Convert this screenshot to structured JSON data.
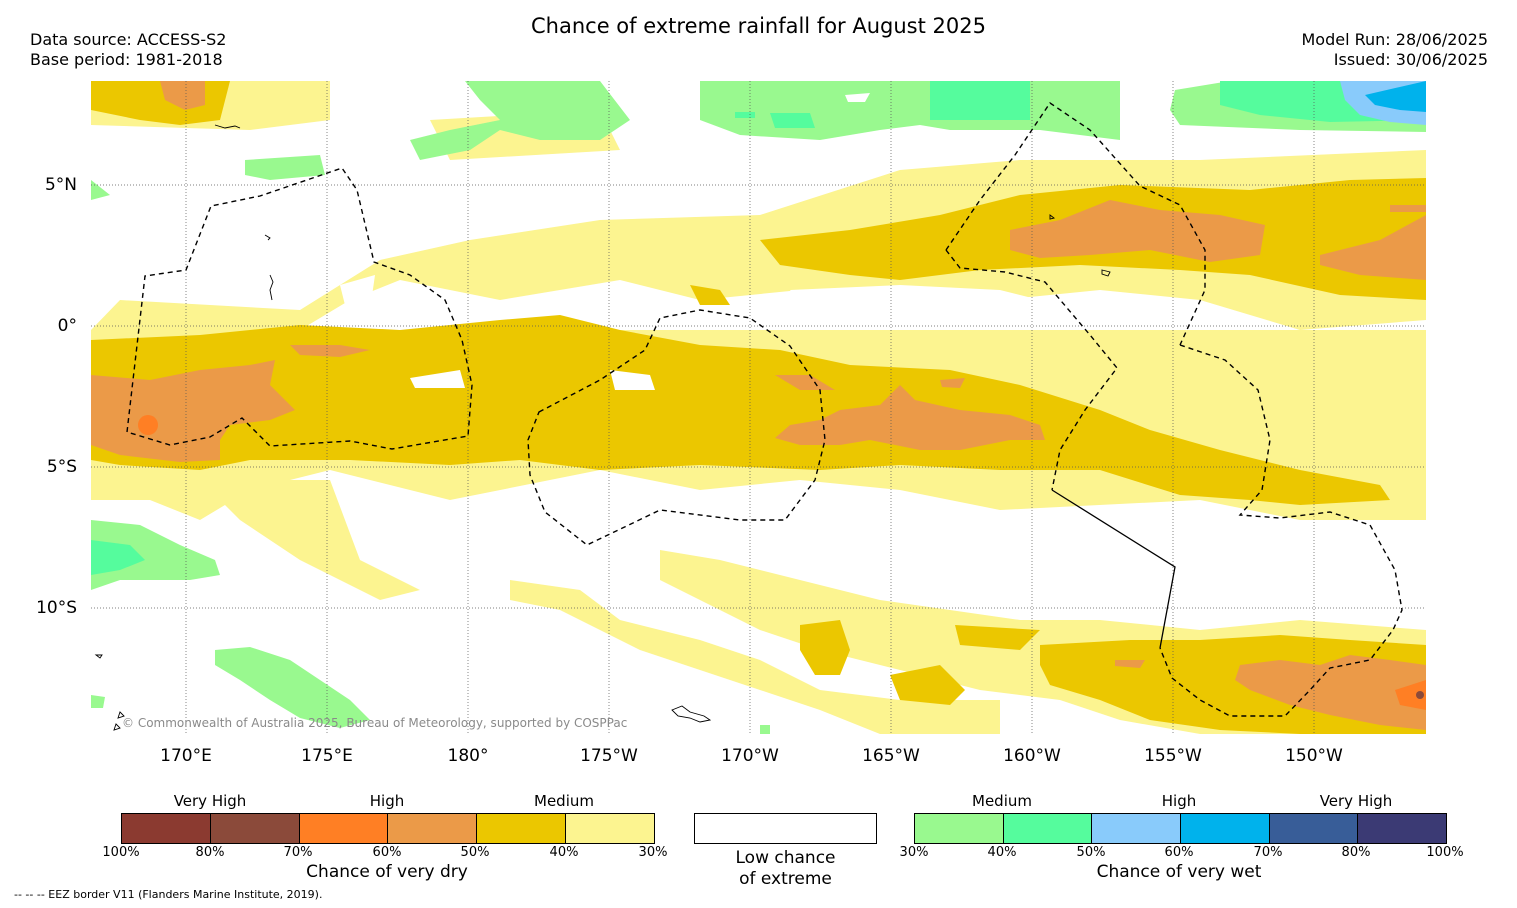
{
  "title": "Chance of extreme rainfall for August 2025",
  "data_source": "Data source: ACCESS-S2",
  "base_period": "Base period: 1981-2018",
  "model_run": "Model Run: 28/06/2025",
  "issued": "Issued: 30/06/2025",
  "lat_labels": [
    "5°N",
    "0°",
    "5°S",
    "10°S"
  ],
  "lon_labels": [
    "170°E",
    "175°E",
    "180°",
    "175°W",
    "170°W",
    "165°W",
    "160°W",
    "155°W",
    "150°W"
  ],
  "copyright": "© Commonwealth of Australia 2025, Bureau of Meteorology, supported by COSPPac",
  "dry_legend": {
    "group_labels": [
      "Very High",
      "High",
      "Medium"
    ],
    "ticks": [
      "100%",
      "80%",
      "70%",
      "60%",
      "50%",
      "40%",
      "30%"
    ],
    "colors": [
      "#8b3a30",
      "#8b4a3a",
      "#ff7f24",
      "#eb9a48",
      "#ebc700",
      "#fcf490"
    ],
    "title": "Chance of very dry"
  },
  "low_legend": {
    "line1": "Low chance",
    "line2": "of extreme",
    "color": "#ffffff"
  },
  "wet_legend": {
    "group_labels": [
      "Medium",
      "High",
      "Very High"
    ],
    "ticks": [
      "30%",
      "40%",
      "50%",
      "60%",
      "70%",
      "80%",
      "100%"
    ],
    "colors": [
      "#99f98f",
      "#55fc9d",
      "#89cbfb",
      "#00b2ec",
      "#385d98",
      "#3b3a74"
    ],
    "title": "Chance of very wet"
  },
  "eez_note": "--  --  -- EEZ border V11 (Flanders Marine Institute, 2019)."
}
